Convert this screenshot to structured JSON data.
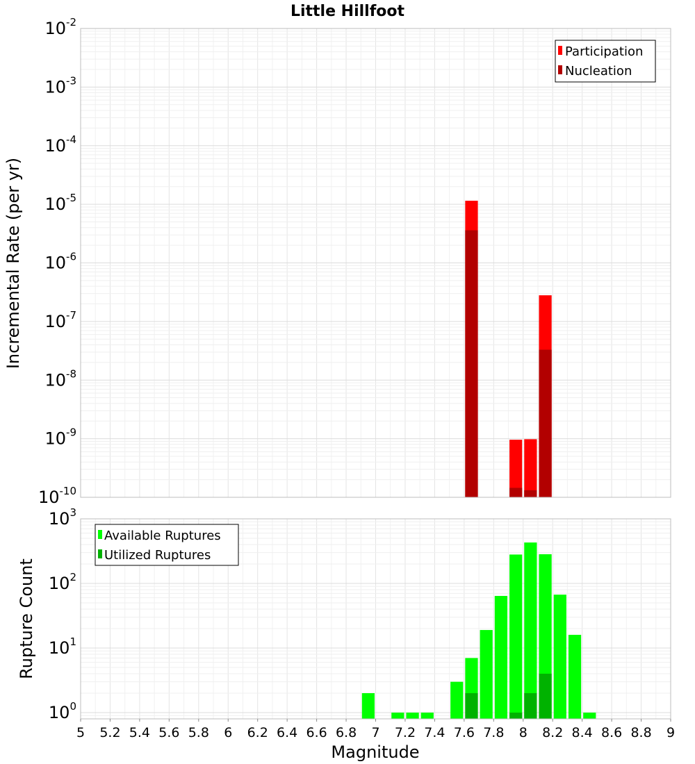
{
  "chart_data": [
    {
      "type": "bar",
      "title": "Little Hillfoot",
      "xlabel": "",
      "ylabel": "Incremental Rate (per yr)",
      "y_scale": "log",
      "ylim": [
        1e-10,
        0.01
      ],
      "xlim": [
        5,
        9
      ],
      "y_tick_exponents": [
        -2,
        -3,
        -4,
        -5,
        -6,
        -7,
        -8,
        -9,
        -10
      ],
      "grid": true,
      "legend_position": "top-right",
      "bin_width": 0.1,
      "series": [
        {
          "name": "Participation",
          "color": "#ff0000",
          "points": [
            {
              "x": 7.65,
              "y": 1.15e-05
            },
            {
              "x": 7.95,
              "y": 9.6e-10
            },
            {
              "x": 8.05,
              "y": 9.8e-10
            },
            {
              "x": 8.15,
              "y": 2.8e-07
            }
          ]
        },
        {
          "name": "Nucleation",
          "color": "#b20000",
          "points": [
            {
              "x": 7.65,
              "y": 3.6e-06
            },
            {
              "x": 7.95,
              "y": 1.45e-10
            },
            {
              "x": 8.05,
              "y": 1.32e-10
            },
            {
              "x": 8.15,
              "y": 3.3e-08
            }
          ]
        }
      ]
    },
    {
      "type": "bar",
      "xlabel": "Magnitude",
      "ylabel": "Rupture Count",
      "y_scale": "log",
      "ylim": [
        0.8,
        1000
      ],
      "xlim": [
        5,
        9
      ],
      "y_tick_exponents": [
        3,
        2,
        1,
        0
      ],
      "x_ticks": [
        "5",
        "5.2",
        "5.4",
        "5.6",
        "5.8",
        "6",
        "6.2",
        "6.4",
        "6.6",
        "6.8",
        "7",
        "7.2",
        "7.4",
        "7.6",
        "7.8",
        "8",
        "8.2",
        "8.4",
        "8.6",
        "8.8",
        "9"
      ],
      "grid": true,
      "legend_position": "top-left",
      "bin_width": 0.1,
      "series": [
        {
          "name": "Available Ruptures",
          "color": "#00ff00",
          "points": [
            {
              "x": 6.95,
              "y": 2
            },
            {
              "x": 7.15,
              "y": 1
            },
            {
              "x": 7.25,
              "y": 1
            },
            {
              "x": 7.35,
              "y": 1
            },
            {
              "x": 7.55,
              "y": 3
            },
            {
              "x": 7.65,
              "y": 7
            },
            {
              "x": 7.75,
              "y": 19
            },
            {
              "x": 7.85,
              "y": 64
            },
            {
              "x": 7.95,
              "y": 280
            },
            {
              "x": 8.05,
              "y": 430
            },
            {
              "x": 8.15,
              "y": 283
            },
            {
              "x": 8.25,
              "y": 67
            },
            {
              "x": 8.35,
              "y": 16
            },
            {
              "x": 8.45,
              "y": 1
            }
          ]
        },
        {
          "name": "Utilized Ruptures",
          "color": "#00b200",
          "points": [
            {
              "x": 7.65,
              "y": 2
            },
            {
              "x": 7.95,
              "y": 1
            },
            {
              "x": 8.05,
              "y": 2
            },
            {
              "x": 8.15,
              "y": 4
            }
          ]
        }
      ]
    }
  ]
}
